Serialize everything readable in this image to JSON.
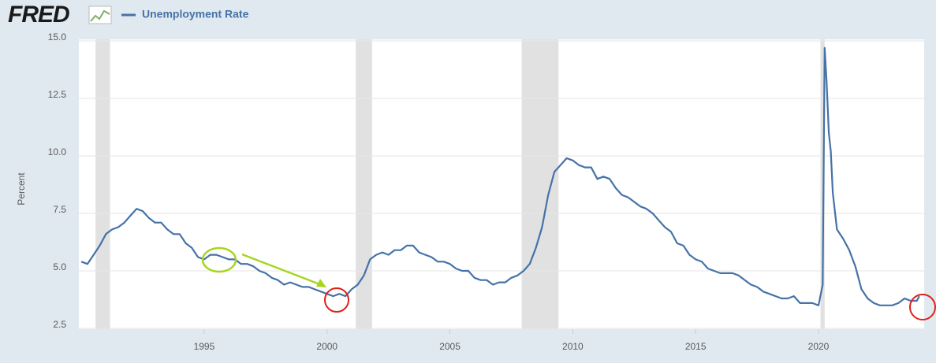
{
  "chart_data": {
    "type": "line",
    "logo": "FRED",
    "ylabel": "Percent",
    "x": [
      1990.0,
      1990.25,
      1990.5,
      1990.75,
      1991.0,
      1991.25,
      1991.5,
      1991.75,
      1992.0,
      1992.25,
      1992.5,
      1992.75,
      1993.0,
      1993.25,
      1993.5,
      1993.75,
      1994.0,
      1994.25,
      1994.5,
      1994.75,
      1995.0,
      1995.25,
      1995.5,
      1995.75,
      1996.0,
      1996.25,
      1996.5,
      1996.75,
      1997.0,
      1997.25,
      1997.5,
      1997.75,
      1998.0,
      1998.25,
      1998.5,
      1998.75,
      1999.0,
      1999.25,
      1999.5,
      1999.75,
      2000.0,
      2000.25,
      2000.5,
      2000.75,
      2001.0,
      2001.25,
      2001.5,
      2001.75,
      2002.0,
      2002.25,
      2002.5,
      2002.75,
      2003.0,
      2003.25,
      2003.5,
      2003.75,
      2004.0,
      2004.25,
      2004.5,
      2004.75,
      2005.0,
      2005.25,
      2005.5,
      2005.75,
      2006.0,
      2006.25,
      2006.5,
      2006.75,
      2007.0,
      2007.25,
      2007.5,
      2007.75,
      2008.0,
      2008.25,
      2008.5,
      2008.75,
      2009.0,
      2009.25,
      2009.5,
      2009.75,
      2010.0,
      2010.25,
      2010.5,
      2010.75,
      2011.0,
      2011.25,
      2011.5,
      2011.75,
      2012.0,
      2012.25,
      2012.5,
      2012.75,
      2013.0,
      2013.25,
      2013.5,
      2013.75,
      2014.0,
      2014.25,
      2014.5,
      2014.75,
      2015.0,
      2015.25,
      2015.5,
      2015.75,
      2016.0,
      2016.25,
      2016.5,
      2016.75,
      2017.0,
      2017.25,
      2017.5,
      2017.75,
      2018.0,
      2018.25,
      2018.5,
      2018.75,
      2019.0,
      2019.25,
      2019.5,
      2019.75,
      2020.0,
      2020.17,
      2020.25,
      2020.33,
      2020.42,
      2020.5,
      2020.58,
      2020.75,
      2021.0,
      2021.25,
      2021.5,
      2021.75,
      2022.0,
      2022.25,
      2022.5,
      2022.75,
      2023.0,
      2023.25,
      2023.5,
      2023.75,
      2024.0,
      2024.1
    ],
    "series": [
      {
        "name": "Unemployment Rate",
        "color": "#4572a7",
        "values": [
          5.4,
          5.3,
          5.7,
          6.1,
          6.6,
          6.8,
          6.9,
          7.1,
          7.4,
          7.7,
          7.6,
          7.3,
          7.1,
          7.1,
          6.8,
          6.6,
          6.6,
          6.2,
          6.0,
          5.6,
          5.5,
          5.7,
          5.7,
          5.6,
          5.5,
          5.5,
          5.3,
          5.3,
          5.2,
          5.0,
          4.9,
          4.7,
          4.6,
          4.4,
          4.5,
          4.4,
          4.3,
          4.3,
          4.2,
          4.1,
          4.0,
          3.9,
          4.0,
          3.9,
          4.2,
          4.4,
          4.8,
          5.5,
          5.7,
          5.8,
          5.7,
          5.9,
          5.9,
          6.1,
          6.1,
          5.8,
          5.7,
          5.6,
          5.4,
          5.4,
          5.3,
          5.1,
          5.0,
          5.0,
          4.7,
          4.6,
          4.6,
          4.4,
          4.5,
          4.5,
          4.7,
          4.8,
          5.0,
          5.3,
          6.0,
          6.9,
          8.3,
          9.3,
          9.6,
          9.9,
          9.8,
          9.6,
          9.5,
          9.5,
          9.0,
          9.1,
          9.0,
          8.6,
          8.3,
          8.2,
          8.0,
          7.8,
          7.7,
          7.5,
          7.2,
          6.9,
          6.7,
          6.2,
          6.1,
          5.7,
          5.5,
          5.4,
          5.1,
          5.0,
          4.9,
          4.9,
          4.9,
          4.8,
          4.6,
          4.4,
          4.3,
          4.1,
          4.0,
          3.9,
          3.8,
          3.8,
          3.9,
          3.6,
          3.6,
          3.6,
          3.5,
          4.4,
          14.7,
          13.2,
          11.0,
          10.2,
          8.4,
          6.8,
          6.4,
          5.9,
          5.2,
          4.2,
          3.8,
          3.6,
          3.5,
          3.5,
          3.5,
          3.6,
          3.8,
          3.7,
          3.7,
          3.9
        ]
      }
    ],
    "recessions": [
      [
        1990.58,
        1991.17
      ],
      [
        2001.17,
        2001.83
      ],
      [
        2007.92,
        2009.42
      ],
      [
        2020.08,
        2020.25
      ]
    ],
    "recession_color": "#e1e1e1",
    "xlim": [
      1989.9,
      2024.3
    ],
    "xticks": [
      1995,
      2000,
      2005,
      2010,
      2015,
      2020
    ],
    "ylim": [
      2.5,
      15.0
    ],
    "yticks": [
      {
        "value": 2.5,
        "label": "2.5"
      },
      {
        "value": 5.0,
        "label": "5.0"
      },
      {
        "value": 7.5,
        "label": "7.5"
      },
      {
        "value": 10.0,
        "label": "10.0"
      },
      {
        "value": 12.5,
        "label": "12.5"
      },
      {
        "value": 15.0,
        "label": "15.0"
      }
    ],
    "grid": true
  }
}
